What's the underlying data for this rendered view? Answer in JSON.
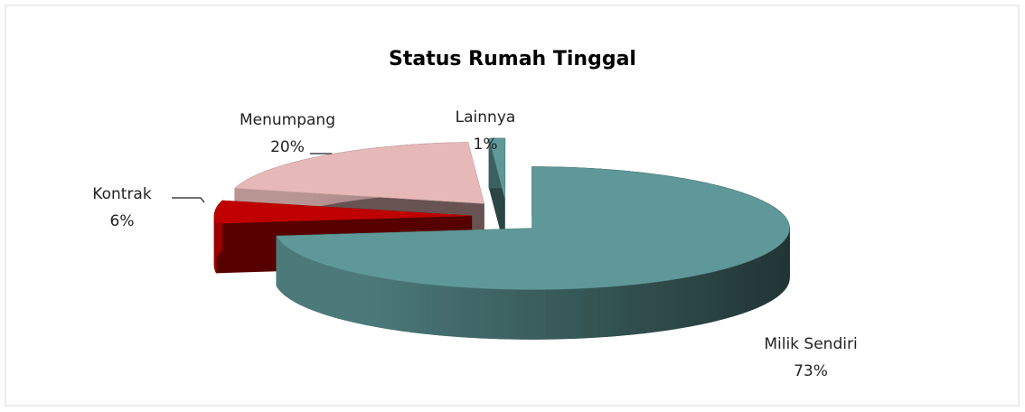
{
  "chart_data": {
    "type": "pie3d",
    "title": "Status Rumah Tinggal",
    "categories": [
      "Milik Sendiri",
      "Kontrak",
      "Menumpang",
      "Lainnya"
    ],
    "values": [
      73,
      6,
      20,
      1
    ],
    "value_labels": [
      "73%",
      "6%",
      "20%",
      "1%"
    ],
    "colors": [
      "#5f9898",
      "#c00000",
      "#e6b9b8",
      "#5f9898"
    ]
  }
}
